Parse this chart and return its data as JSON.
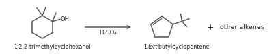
{
  "background_color": "#ffffff",
  "fig_width": 4.07,
  "fig_height": 0.8,
  "dpi": 100,
  "reagent_text": "H₂SO₄",
  "plus_text": "+",
  "other_alkenes_text": "other alkenes",
  "label_left": "1,2,2-trimethylcyclohexanol",
  "label_right_prefix": "1-",
  "label_right_italic": "tert",
  "label_right_suffix": "-butylcyclopentene",
  "text_color": "#222222",
  "line_color": "#555555",
  "font_size_label": 5.8,
  "font_size_reagent": 6.2,
  "font_size_plus": 9.0,
  "font_size_other": 6.8,
  "font_size_OH": 6.0
}
